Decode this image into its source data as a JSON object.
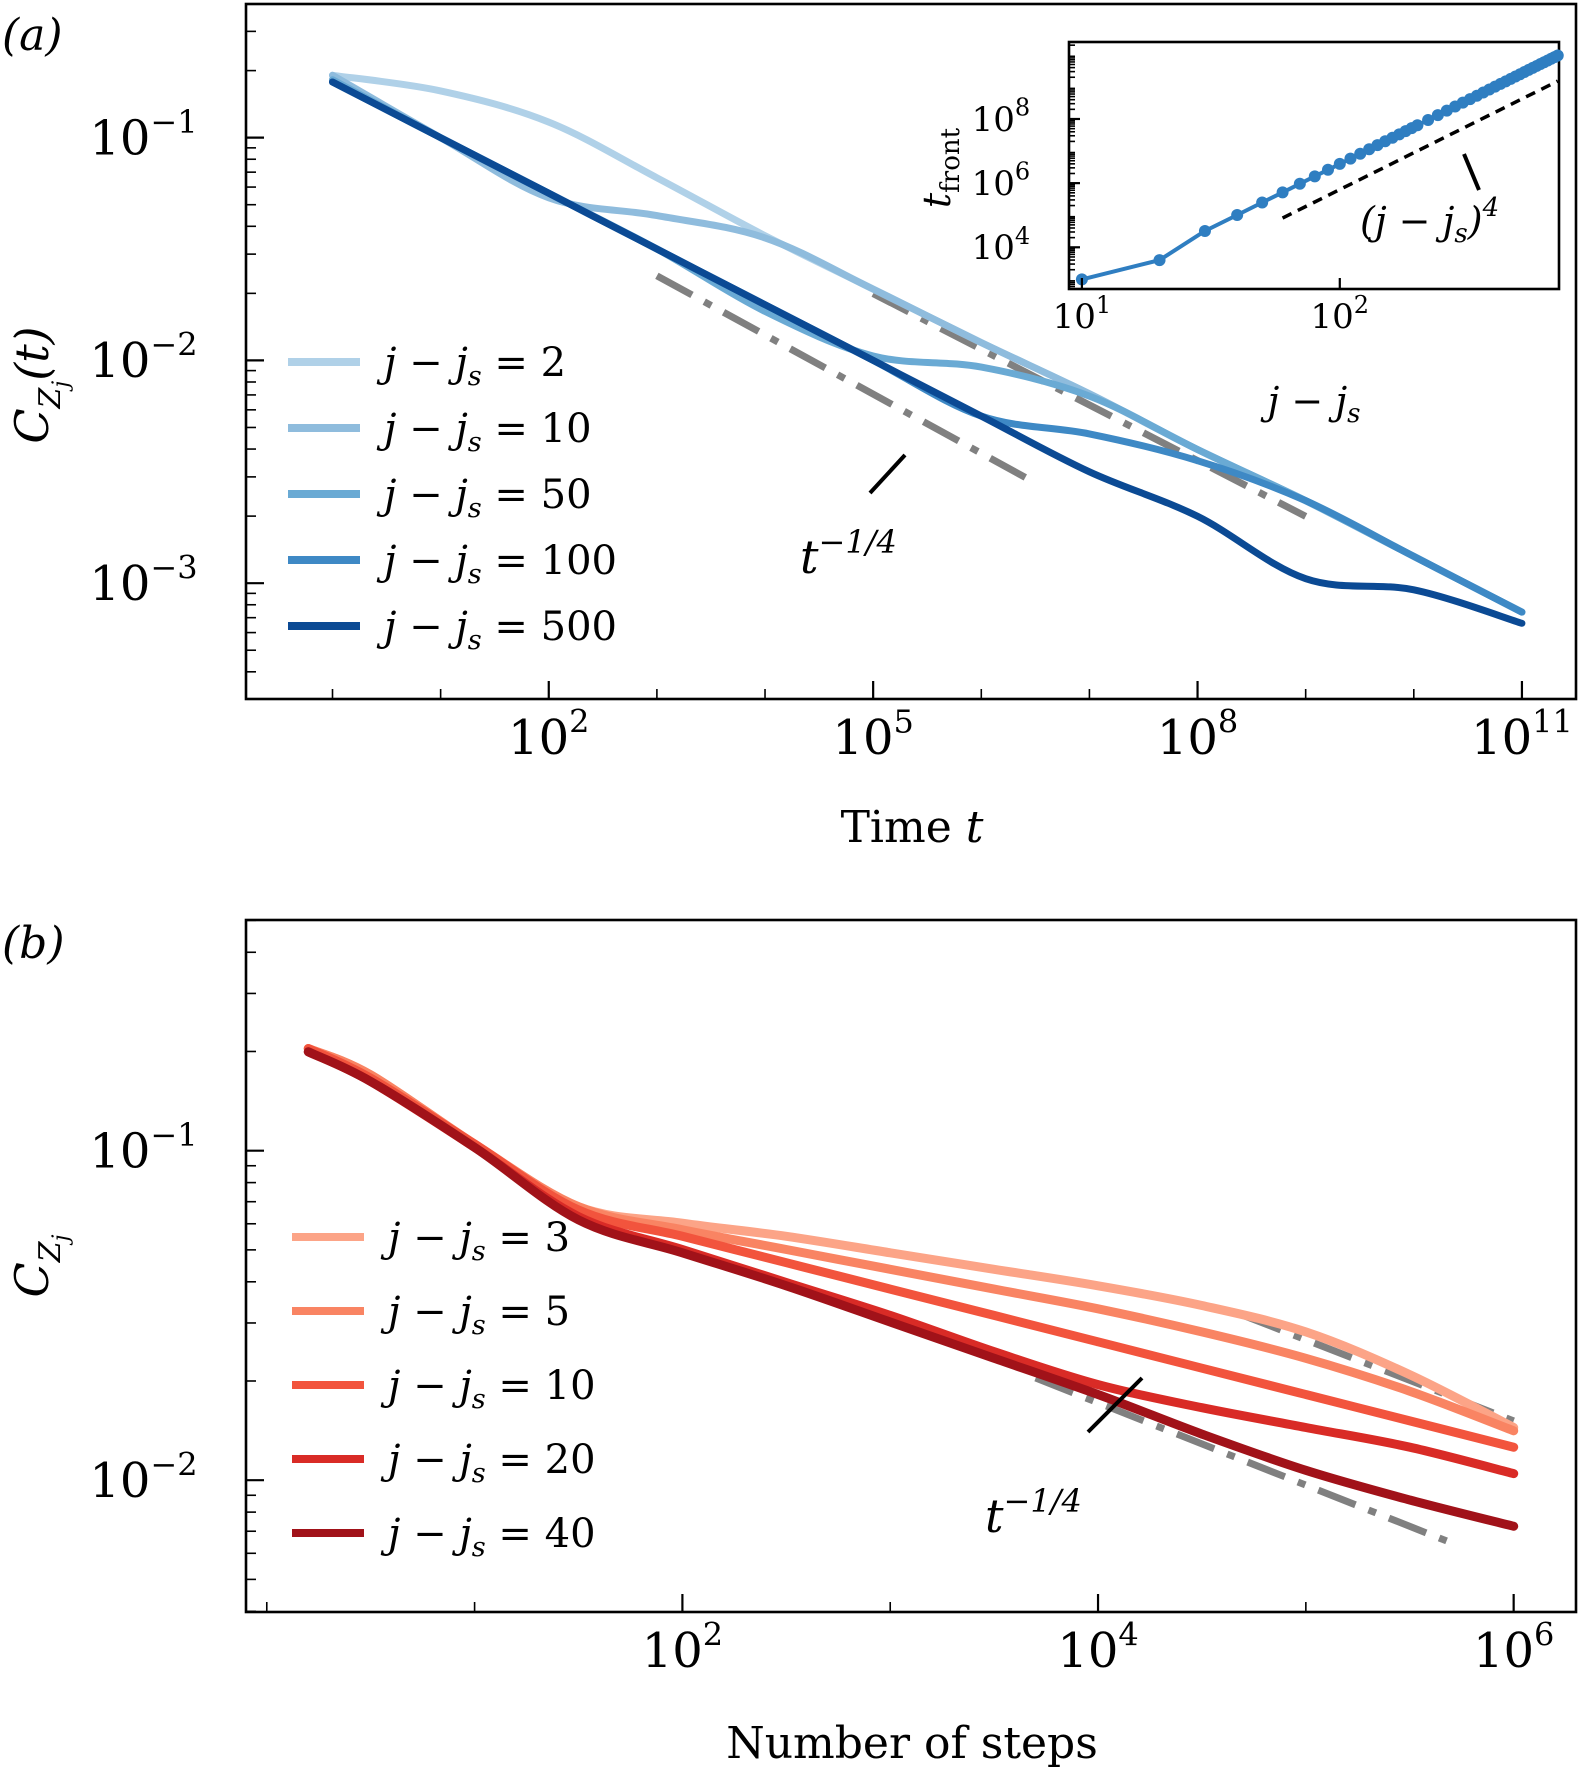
{
  "chart_data": [
    {
      "panel_label": "(a)",
      "type": "line",
      "xscale": "log",
      "yscale": "log",
      "xlim_log10": [
        -0.8,
        11.5
      ],
      "ylim_log10": [
        -3.52,
        -0.4
      ],
      "xlabel": "Time t",
      "ylabel": "C_{Z_j}(t)",
      "xticks": [
        {
          "log": 2,
          "label": "10",
          "exp": "2"
        },
        {
          "log": 5,
          "label": "10",
          "exp": "5"
        },
        {
          "log": 8,
          "label": "10",
          "exp": "8"
        },
        {
          "log": 11,
          "label": "10",
          "exp": "11"
        }
      ],
      "yticks": [
        {
          "log": -1,
          "label": "10",
          "exp": "−1"
        },
        {
          "log": -2,
          "label": "10",
          "exp": "−2"
        },
        {
          "log": -3,
          "label": "10",
          "exp": "−3"
        }
      ],
      "legend_position": "center-left",
      "series": [
        {
          "name": "j − j_s = 2",
          "color": "#b0d1e8",
          "x_log10": [
            0,
            1,
            2,
            3,
            4,
            5,
            6,
            7,
            8,
            9,
            10,
            11
          ],
          "y_log10": [
            -0.72,
            -0.79,
            -0.93,
            -1.18,
            -1.44,
            -1.68,
            -1.92,
            -2.15,
            -2.4,
            -2.63,
            -2.88,
            -3.13
          ]
        },
        {
          "name": "j − j_s = 10",
          "color": "#8fbcdd",
          "x_log10": [
            0,
            1,
            2,
            3,
            4,
            5,
            6,
            7,
            8,
            9,
            10,
            11
          ],
          "y_log10": [
            -0.72,
            -1.0,
            -1.27,
            -1.35,
            -1.45,
            -1.68,
            -1.92,
            -2.15,
            -2.4,
            -2.63,
            -2.88,
            -3.13
          ]
        },
        {
          "name": "j − j_s = 50",
          "color": "#6aaad4",
          "x_log10": [
            0,
            1,
            2,
            3,
            4,
            5,
            6,
            7,
            8,
            9,
            10,
            11
          ],
          "y_log10": [
            -0.74,
            -1.0,
            -1.25,
            -1.5,
            -1.78,
            -1.98,
            -2.03,
            -2.16,
            -2.4,
            -2.63,
            -2.88,
            -3.13
          ]
        },
        {
          "name": "j − j_s = 100",
          "color": "#3e89c5",
          "x_log10": [
            0,
            1,
            2,
            3,
            4,
            5,
            6,
            7,
            8,
            9,
            10,
            11
          ],
          "y_log10": [
            -0.75,
            -1.0,
            -1.25,
            -1.5,
            -1.75,
            -2.0,
            -2.25,
            -2.33,
            -2.45,
            -2.63,
            -2.88,
            -3.13
          ]
        },
        {
          "name": "j − j_s = 500",
          "color": "#0b4a94",
          "x_log10": [
            0,
            1,
            2,
            3,
            4,
            5,
            6,
            7,
            8,
            9,
            10,
            11
          ],
          "y_log10": [
            -0.75,
            -1.0,
            -1.25,
            -1.5,
            -1.75,
            -2.0,
            -2.25,
            -2.5,
            -2.7,
            -2.98,
            -3.03,
            -3.18
          ]
        }
      ],
      "guide_lines": [
        {
          "label": "t^{-1/4}",
          "x_log10": [
            3.0,
            6.5
          ],
          "y_log10": [
            -1.62,
            -2.55
          ],
          "color": "#808080"
        },
        {
          "label": "",
          "x_log10": [
            5.0,
            9.0
          ],
          "y_log10": [
            -1.7,
            -2.7
          ],
          "color": "#808080"
        }
      ],
      "annotation": {
        "text": "t",
        "sup": "−1/4"
      },
      "inset": {
        "type": "line",
        "xscale": "log",
        "yscale": "log",
        "xlabel": "j − j_s",
        "ylabel": "t_front",
        "xlim_log10": [
          0.95,
          2.85
        ],
        "ylim_log10": [
          2.7,
          10.4
        ],
        "xticks": [
          {
            "log": 1,
            "label": "10",
            "exp": "1"
          },
          {
            "log": 2,
            "label": "10",
            "exp": "2"
          }
        ],
        "yticks": [
          {
            "log": 4,
            "label": "10",
            "exp": "4"
          },
          {
            "log": 6,
            "label": "10",
            "exp": "6"
          },
          {
            "log": 8,
            "label": "10",
            "exp": "8"
          }
        ],
        "series_color": "#2f7ec1",
        "j_minus_js": [
          10,
          20,
          30,
          40,
          50,
          60,
          70,
          80,
          90,
          100,
          110,
          120,
          130,
          140,
          150,
          160,
          170,
          180,
          190,
          200,
          220,
          240,
          260,
          280,
          300,
          320,
          340,
          360,
          380,
          400,
          420,
          440,
          460,
          480,
          500,
          520,
          540,
          560,
          580,
          600,
          620,
          640,
          660,
          680,
          700
        ],
        "power_law_label": "(j − j_s)^4",
        "power_law_color": "#000000"
      }
    },
    {
      "panel_label": "(b)",
      "type": "line",
      "xscale": "log",
      "yscale": "log",
      "xlim_log10": [
        -0.1,
        6.3
      ],
      "ylim_log10": [
        -2.4,
        -0.3
      ],
      "xlabel": "Number of steps",
      "ylabel": "C_{Z_j}",
      "xticks": [
        {
          "log": 2,
          "label": "10",
          "exp": "2"
        },
        {
          "log": 4,
          "label": "10",
          "exp": "4"
        },
        {
          "log": 6,
          "label": "10",
          "exp": "6"
        }
      ],
      "yticks": [
        {
          "log": -1,
          "label": "10",
          "exp": "−1"
        },
        {
          "log": -2,
          "label": "10",
          "exp": "−2"
        }
      ],
      "legend_position": "center-left",
      "series": [
        {
          "name": "j − j_s = 3",
          "color": "#fca487",
          "x_log10": [
            0.2,
            0.5,
            1.0,
            1.5,
            2,
            2.5,
            3,
            3.5,
            4,
            4.5,
            5,
            5.5,
            6
          ],
          "y_log10": [
            -0.69,
            -0.77,
            -0.98,
            -1.17,
            -1.22,
            -1.26,
            -1.31,
            -1.36,
            -1.41,
            -1.47,
            -1.55,
            -1.68,
            -1.84
          ]
        },
        {
          "name": "j − j_s = 5",
          "color": "#f98463",
          "x_log10": [
            0.2,
            0.5,
            1.0,
            1.5,
            2,
            2.5,
            3,
            3.5,
            4,
            4.5,
            5,
            5.5,
            6
          ],
          "y_log10": [
            -0.69,
            -0.77,
            -0.98,
            -1.17,
            -1.24,
            -1.3,
            -1.36,
            -1.42,
            -1.48,
            -1.55,
            -1.63,
            -1.73,
            -1.85
          ]
        },
        {
          "name": "j − j_s = 10",
          "color": "#f2543d",
          "x_log10": [
            0.2,
            0.5,
            1.0,
            1.5,
            2,
            2.5,
            3,
            3.5,
            4,
            4.5,
            5,
            5.5,
            6
          ],
          "y_log10": [
            -0.69,
            -0.78,
            -0.98,
            -1.18,
            -1.26,
            -1.34,
            -1.42,
            -1.5,
            -1.58,
            -1.66,
            -1.74,
            -1.82,
            -1.9
          ]
        },
        {
          "name": "j − j_s = 20",
          "color": "#d92b26",
          "x_log10": [
            0.2,
            0.5,
            1.0,
            1.5,
            2,
            2.5,
            3,
            3.5,
            4,
            4.5,
            5,
            5.5,
            6
          ],
          "y_log10": [
            -0.7,
            -0.79,
            -0.99,
            -1.2,
            -1.3,
            -1.4,
            -1.5,
            -1.61,
            -1.71,
            -1.78,
            -1.84,
            -1.9,
            -1.98
          ]
        },
        {
          "name": "j − j_s = 40",
          "color": "#a11219",
          "x_log10": [
            0.2,
            0.5,
            1.0,
            1.5,
            2,
            2.5,
            3,
            3.5,
            4,
            4.5,
            5,
            5.5,
            6
          ],
          "y_log10": [
            -0.7,
            -0.79,
            -0.99,
            -1.21,
            -1.31,
            -1.41,
            -1.52,
            -1.63,
            -1.74,
            -1.86,
            -1.97,
            -2.06,
            -2.14
          ]
        }
      ],
      "guide_lines": [
        {
          "label": "t^{-1/4}",
          "x_log10": [
            3.7,
            5.7
          ],
          "y_log10": [
            -1.69,
            -2.19
          ],
          "color": "#808080"
        },
        {
          "label": "",
          "x_log10": [
            4.7,
            6.0
          ],
          "y_log10": [
            -1.5,
            -1.82
          ],
          "color": "#808080"
        }
      ],
      "annotation": {
        "text": "t",
        "sup": "−1/4"
      }
    }
  ]
}
